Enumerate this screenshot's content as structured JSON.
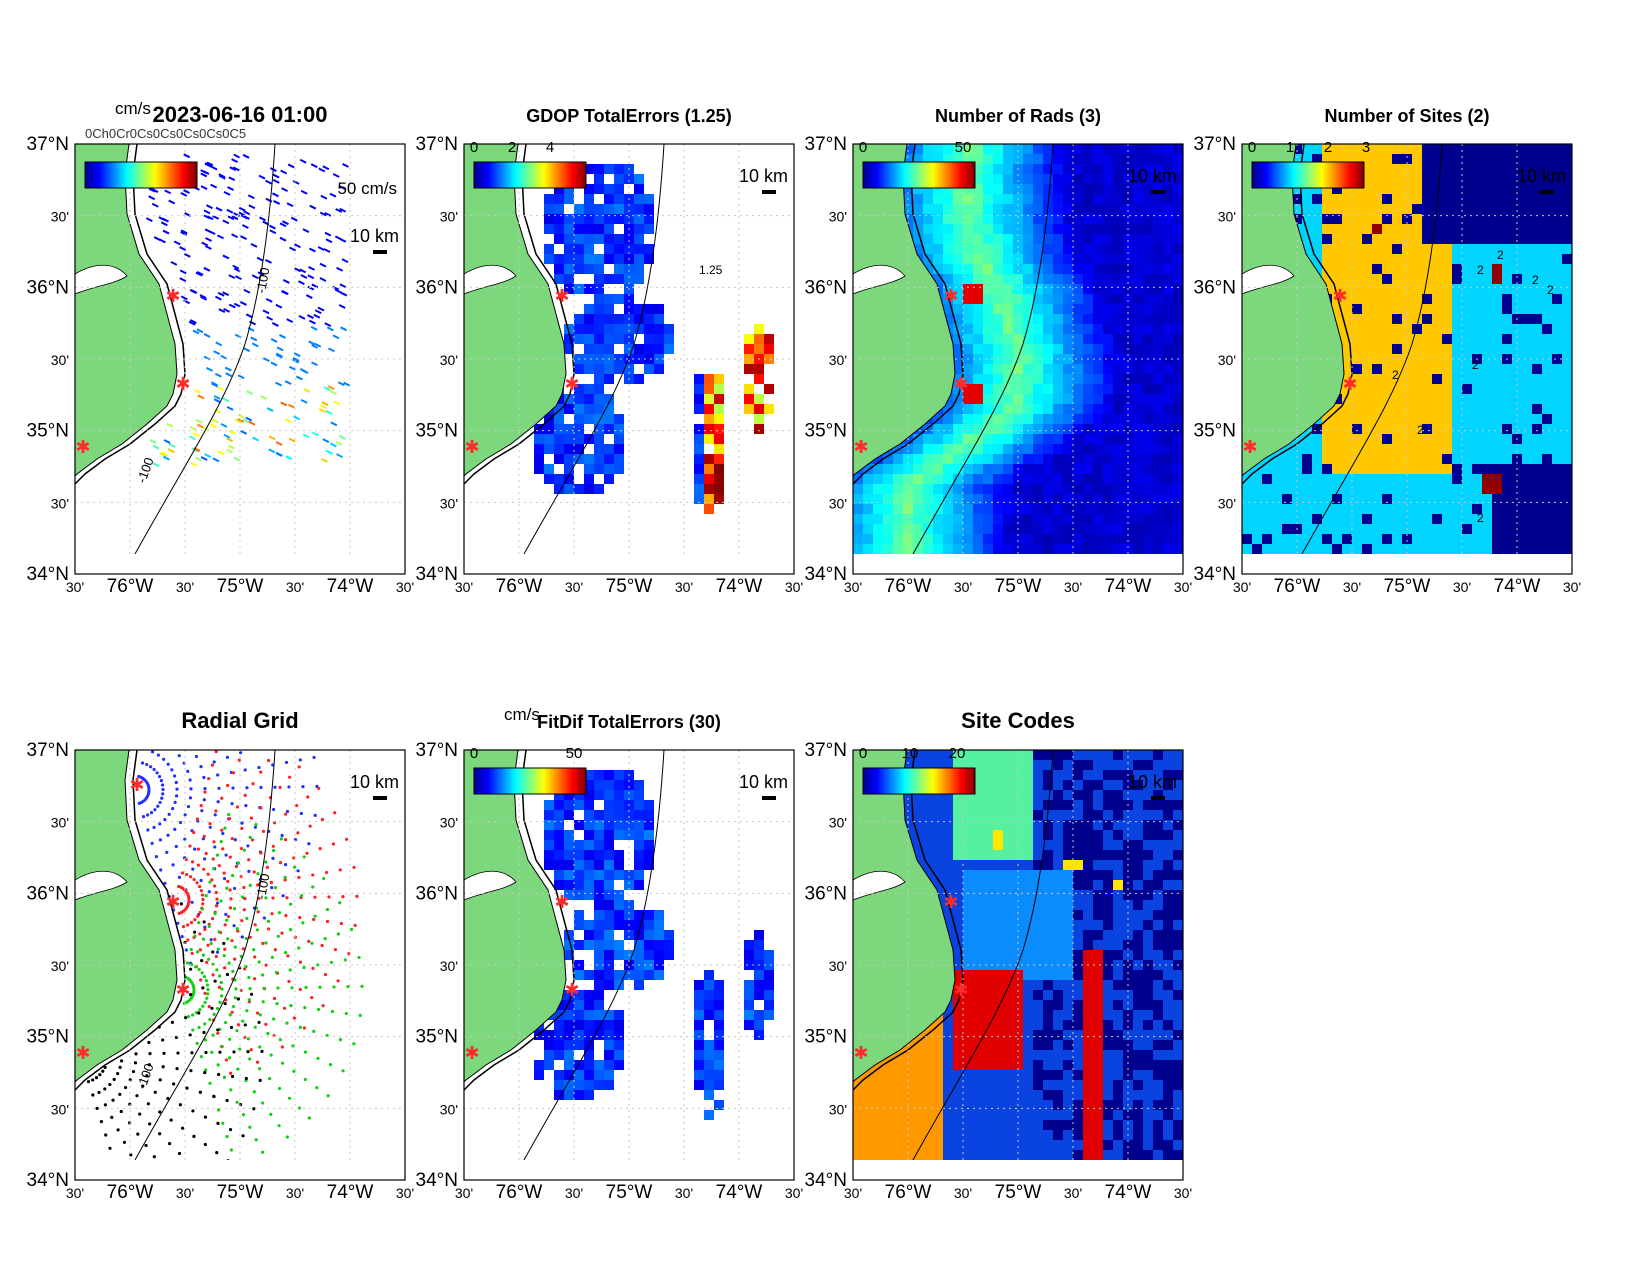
{
  "figure": {
    "timestamp": "2023-06-16 01:00",
    "overlap_label": "0Ch0Cr0Cs0Cs0Cs0Cs0C5"
  },
  "axes_labels": {
    "lat": [
      "37°N",
      "30'",
      "36°N",
      "30'",
      "35°N",
      "30'",
      "34°N"
    ],
    "lon": [
      "30'",
      "76°W",
      "30'",
      "75°W",
      "30'",
      "74°W",
      "30'"
    ]
  },
  "scale_bar": "10 km",
  "panels": [
    {
      "id": "vectors",
      "title": "",
      "cbar_unit": "cm/s",
      "cbar_ticks": [],
      "ref_vector": "50 cm/s",
      "depth_labels": [
        "-100",
        "-100"
      ]
    },
    {
      "id": "gdop",
      "title": "GDOP TotalErrors (1.25)",
      "cbar_unit": "",
      "cbar_ticks": [
        "0",
        "2",
        "4"
      ],
      "contour_labels": [
        "1.25"
      ]
    },
    {
      "id": "nrads",
      "title": "Number of Rads (3)",
      "cbar_unit": "",
      "cbar_ticks": [
        "0",
        "50"
      ]
    },
    {
      "id": "nsites",
      "title": "Number of Sites (2)",
      "cbar_unit": "",
      "cbar_ticks": [
        "0",
        "1",
        "2",
        "3"
      ],
      "contour_labels": [
        "2",
        "2",
        "2",
        "2",
        "2",
        "2",
        "2",
        "2"
      ]
    },
    {
      "id": "radgrid",
      "title": "Radial Grid",
      "cbar_unit": "",
      "cbar_ticks": [],
      "depth_labels": [
        "-100",
        "-100"
      ]
    },
    {
      "id": "fitdif",
      "title": "FitDif TotalErrors (30)",
      "cbar_unit": "cm/s",
      "cbar_ticks": [
        "0",
        "50"
      ]
    },
    {
      "id": "sitecodes",
      "title": "Site Codes",
      "cbar_unit": "",
      "cbar_ticks": [
        "0",
        "10",
        "20"
      ]
    }
  ],
  "colors": {
    "land": "#7dd87d",
    "site_marker": "#ff2a2a",
    "grid": "#c8c8c8"
  }
}
